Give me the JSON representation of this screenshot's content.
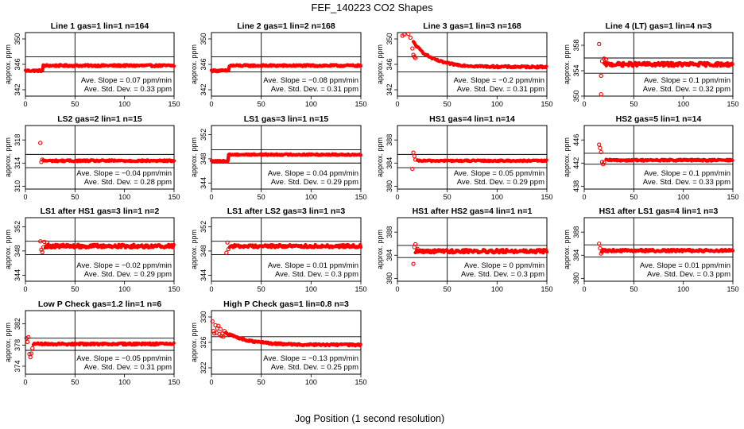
{
  "title": "FEF_140223  CO2 Shapes",
  "xlabel": "Jog Position (1 second resolution)",
  "ylabel": "approx. ppm",
  "series_color": "#ff0000",
  "chart_data": [
    {
      "type": "scatter",
      "title": "Line 1 gas=1 lin=1 n=164",
      "xlim": [
        0,
        150
      ],
      "xticks": [
        0,
        50,
        100,
        150
      ],
      "ylim": [
        341,
        351
      ],
      "yticks": [
        342,
        346,
        350
      ],
      "hlines": [
        347.2,
        344.8
      ],
      "vline": 50,
      "shape": {
        "kind": "step",
        "base": 345.0,
        "level": 345.8,
        "step_x": 18,
        "noise": 0.15
      },
      "scatter_points": [],
      "slope_text": "Ave. Slope = 0.07  ppm/min",
      "std_text": "Ave. Std. Dev. = 0.33  ppm"
    },
    {
      "type": "scatter",
      "title": "Line 2 gas=1 lin=2 n=168",
      "xlim": [
        0,
        150
      ],
      "xticks": [
        0,
        50,
        100,
        150
      ],
      "ylim": [
        341,
        351
      ],
      "yticks": [
        342,
        346,
        350
      ],
      "hlines": [
        347.2,
        344.8
      ],
      "vline": 50,
      "shape": {
        "kind": "step",
        "base": 345.0,
        "level": 345.8,
        "step_x": 18,
        "noise": 0.15
      },
      "scatter_points": [],
      "slope_text": "Ave. Slope = −0.08  ppm/min",
      "std_text": "Ave. Std. Dev. = 0.31  ppm"
    },
    {
      "type": "scatter",
      "title": "Line 3 gas=1 lin=3 n=168",
      "xlim": [
        0,
        150
      ],
      "xticks": [
        0,
        50,
        100,
        150
      ],
      "ylim": [
        341,
        351
      ],
      "yticks": [
        342,
        346,
        350
      ],
      "hlines": [
        347.2,
        344.8
      ],
      "vline": 50,
      "shape": {
        "kind": "decay",
        "start": 349.5,
        "level": 345.6,
        "x0": 16,
        "tau": 18,
        "noise": 0.15
      },
      "scatter_points": [
        [
          5,
          350.5
        ],
        [
          7,
          350.7
        ],
        [
          11,
          350.8
        ],
        [
          13,
          350.2
        ],
        [
          15,
          348.5
        ],
        [
          16,
          347.5
        ],
        [
          17,
          347.2
        ],
        [
          18,
          347.0
        ]
      ],
      "slope_text": "Ave. Slope = −0.2  ppm/min",
      "std_text": "Ave. Std. Dev. = 0.31  ppm"
    },
    {
      "type": "scatter",
      "title": "Line 4 (LT) gas=1 lin=4 n=3",
      "xlim": [
        0,
        150
      ],
      "xticks": [
        0,
        50,
        100,
        150
      ],
      "ylim": [
        350,
        360
      ],
      "yticks": [
        350,
        354,
        358
      ],
      "hlines": [
        356.0,
        353.6
      ],
      "vline": 50,
      "shape": {
        "kind": "flat",
        "level": 355.0,
        "x0": 20,
        "noise": 0.3
      },
      "scatter_points": [
        [
          15,
          358.2
        ],
        [
          17,
          353.2
        ],
        [
          17,
          350.3
        ],
        [
          18,
          355.5
        ],
        [
          20,
          355.9
        ],
        [
          22,
          355.8
        ]
      ],
      "slope_text": "Ave. Slope = 0.1  ppm/min",
      "std_text": "Ave. Std. Dev. = 0.32  ppm"
    },
    {
      "type": "scatter",
      "title": "LS2 gas=2 lin=1 n=15",
      "xlim": [
        0,
        150
      ],
      "xticks": [
        0,
        50,
        100,
        150
      ],
      "ylim": [
        309.5,
        320.5
      ],
      "yticks": [
        310,
        314,
        318
      ],
      "hlines": [
        315.5,
        313.2
      ],
      "vline": 50,
      "shape": {
        "kind": "flat",
        "level": 314.4,
        "x0": 18,
        "noise": 0.15
      },
      "scatter_points": [
        [
          15,
          317.5
        ],
        [
          16,
          314.2
        ],
        [
          17,
          314.6
        ]
      ],
      "slope_text": "Ave. Slope = −0.04  ppm/min",
      "std_text": "Ave. Std. Dev. = 0.28  ppm"
    },
    {
      "type": "scatter",
      "title": "LS1 gas=3 lin=1 n=15",
      "xlim": [
        0,
        150
      ],
      "xticks": [
        0,
        50,
        100,
        150
      ],
      "ylim": [
        343,
        353.5
      ],
      "yticks": [
        344,
        348,
        352
      ],
      "hlines": [
        349.5,
        347.3
      ],
      "vline": 50,
      "shape": {
        "kind": "step",
        "base": 347.6,
        "level": 348.7,
        "step_x": 17,
        "noise": 0.12
      },
      "scatter_points": [],
      "slope_text": "Ave. Slope = 0.04  ppm/min",
      "std_text": "Ave. Std. Dev. = 0.29  ppm"
    },
    {
      "type": "scatter",
      "title": "HS1 gas=4 lin=1 n=14",
      "xlim": [
        0,
        150
      ],
      "xticks": [
        0,
        50,
        100,
        150
      ],
      "ylim": [
        379.5,
        390.5
      ],
      "yticks": [
        380,
        384,
        388
      ],
      "hlines": [
        385.5,
        383.2
      ],
      "vline": 50,
      "shape": {
        "kind": "flat",
        "level": 384.4,
        "x0": 20,
        "noise": 0.12
      },
      "scatter_points": [
        [
          15,
          383.0
        ],
        [
          16,
          385.8
        ],
        [
          17,
          385.2
        ],
        [
          18,
          384.6
        ]
      ],
      "slope_text": "Ave. Slope = 0.05  ppm/min",
      "std_text": "Ave. Std. Dev. = 0.29  ppm"
    },
    {
      "type": "scatter",
      "title": "HS2 gas=5 lin=1 n=14",
      "xlim": [
        0,
        150
      ],
      "xticks": [
        0,
        50,
        100,
        150
      ],
      "ylim": [
        437.5,
        448.5
      ],
      "yticks": [
        438,
        442,
        446
      ],
      "hlines": [
        443.7,
        441.8
      ],
      "vline": 50,
      "shape": {
        "kind": "flat",
        "level": 442.5,
        "x0": 22,
        "noise": 0.15
      },
      "scatter_points": [
        [
          15,
          445.2
        ],
        [
          16,
          444.6
        ],
        [
          17,
          443.9
        ],
        [
          18,
          442.2
        ],
        [
          19,
          441.8
        ],
        [
          20,
          442.1
        ]
      ],
      "slope_text": "Ave. Slope = 0.1  ppm/min",
      "std_text": "Ave. Std. Dev. = 0.33  ppm"
    },
    {
      "type": "scatter",
      "title": "LS1 after HS1 gas=3 lin=1 n=2",
      "xlim": [
        0,
        150
      ],
      "xticks": [
        0,
        50,
        100,
        150
      ],
      "ylim": [
        343,
        353.5
      ],
      "yticks": [
        344,
        348,
        352
      ],
      "hlines": [
        349.6,
        347.4
      ],
      "vline": 50,
      "shape": {
        "kind": "flat",
        "level": 348.8,
        "x0": 20,
        "noise": 0.3
      },
      "scatter_points": [
        [
          15,
          349.6
        ],
        [
          16,
          348.2
        ],
        [
          17,
          347.8
        ],
        [
          18,
          348.6
        ],
        [
          19,
          349.5
        ],
        [
          22,
          349.4
        ]
      ],
      "slope_text": "Ave. Slope = −0.02  ppm/min",
      "std_text": "Ave. Std. Dev. = 0.29  ppm"
    },
    {
      "type": "scatter",
      "title": "LS1 after LS2 gas=3 lin=1 n=3",
      "xlim": [
        0,
        150
      ],
      "xticks": [
        0,
        50,
        100,
        150
      ],
      "ylim": [
        343,
        353.5
      ],
      "yticks": [
        344,
        348,
        352
      ],
      "hlines": [
        349.6,
        347.4
      ],
      "vline": 50,
      "shape": {
        "kind": "flat",
        "level": 348.8,
        "x0": 18,
        "noise": 0.25
      },
      "scatter_points": [
        [
          15,
          347.7
        ],
        [
          16,
          349.4
        ],
        [
          17,
          348.3
        ]
      ],
      "slope_text": "Ave. Slope = 0.01  ppm/min",
      "std_text": "Ave. Std. Dev. = 0.3  ppm"
    },
    {
      "type": "scatter",
      "title": "HS1 after HS2 gas=4 lin=1 n=1",
      "xlim": [
        0,
        150
      ],
      "xticks": [
        0,
        50,
        100,
        150
      ],
      "ylim": [
        379.5,
        390.5
      ],
      "yticks": [
        380,
        384,
        388
      ],
      "hlines": [
        385.7,
        383.6
      ],
      "vline": 50,
      "shape": {
        "kind": "flat",
        "level": 384.7,
        "x0": 18,
        "noise": 0.3
      },
      "scatter_points": [
        [
          16,
          382.5
        ],
        [
          17,
          385.4
        ],
        [
          18,
          385.9
        ],
        [
          20,
          385.1
        ]
      ],
      "slope_text": "Ave. Slope = 0  ppm/min",
      "std_text": "Ave. Std. Dev. = 0.3  ppm"
    },
    {
      "type": "scatter",
      "title": "HS1 after LS1 gas=4 lin=1 n=3",
      "xlim": [
        0,
        150
      ],
      "xticks": [
        0,
        50,
        100,
        150
      ],
      "ylim": [
        379.5,
        390.5
      ],
      "yticks": [
        380,
        384,
        388
      ],
      "hlines": [
        385.8,
        383.7
      ],
      "vline": 50,
      "shape": {
        "kind": "flat",
        "level": 384.8,
        "x0": 18,
        "noise": 0.2
      },
      "scatter_points": [
        [
          15,
          386.0
        ],
        [
          16,
          385.2
        ],
        [
          17,
          384.3
        ],
        [
          18,
          384.6
        ]
      ],
      "slope_text": "Ave. Slope = 0.01  ppm/min",
      "std_text": "Ave. Std. Dev. = 0.3  ppm"
    },
    {
      "type": "scatter",
      "title": "Low P Check gas=1.2 lin=1 n=6",
      "xlim": [
        0,
        150
      ],
      "xticks": [
        0,
        50,
        100,
        150
      ],
      "ylim": [
        372.5,
        384.5
      ],
      "yticks": [
        374,
        378,
        382
      ],
      "hlines": [
        379.3,
        377.0
      ],
      "vline": 50,
      "shape": {
        "kind": "flat",
        "level": 378.2,
        "x0": 8,
        "noise": 0.2
      },
      "scatter_points": [
        [
          1,
          379.3
        ],
        [
          2,
          378.6
        ],
        [
          3,
          379.5
        ],
        [
          4,
          376.3
        ],
        [
          5,
          375.7
        ],
        [
          6,
          376.4
        ],
        [
          7,
          377.4
        ]
      ],
      "slope_text": "Ave. Slope = −0.05  ppm/min",
      "std_text": "Ave. Std. Dev. = 0.31  ppm"
    },
    {
      "type": "scatter",
      "title": "High P Check gas=1 lin=0.8 n=3",
      "xlim": [
        0,
        150
      ],
      "xticks": [
        0,
        50,
        100,
        150
      ],
      "ylim": [
        321,
        331
      ],
      "yticks": [
        322,
        326,
        330
      ],
      "hlines": [
        326.9,
        324.8
      ],
      "vline": 50,
      "shape": {
        "kind": "decay",
        "start": 327.6,
        "level": 325.6,
        "x0": 14,
        "tau": 22,
        "noise": 0.15
      },
      "scatter_points": [
        [
          1,
          329.3
        ],
        [
          2,
          327.8
        ],
        [
          3,
          327.4
        ],
        [
          4,
          328.7
        ],
        [
          5,
          327.5
        ],
        [
          6,
          328.2
        ],
        [
          7,
          328.6
        ],
        [
          8,
          327.3
        ],
        [
          9,
          328.1
        ],
        [
          10,
          327.0
        ],
        [
          11,
          327.4
        ],
        [
          12,
          326.9
        ],
        [
          13,
          327.8
        ]
      ],
      "slope_text": "Ave. Slope = −0.13  ppm/min",
      "std_text": "Ave. Std. Dev. = 0.25  ppm"
    }
  ]
}
